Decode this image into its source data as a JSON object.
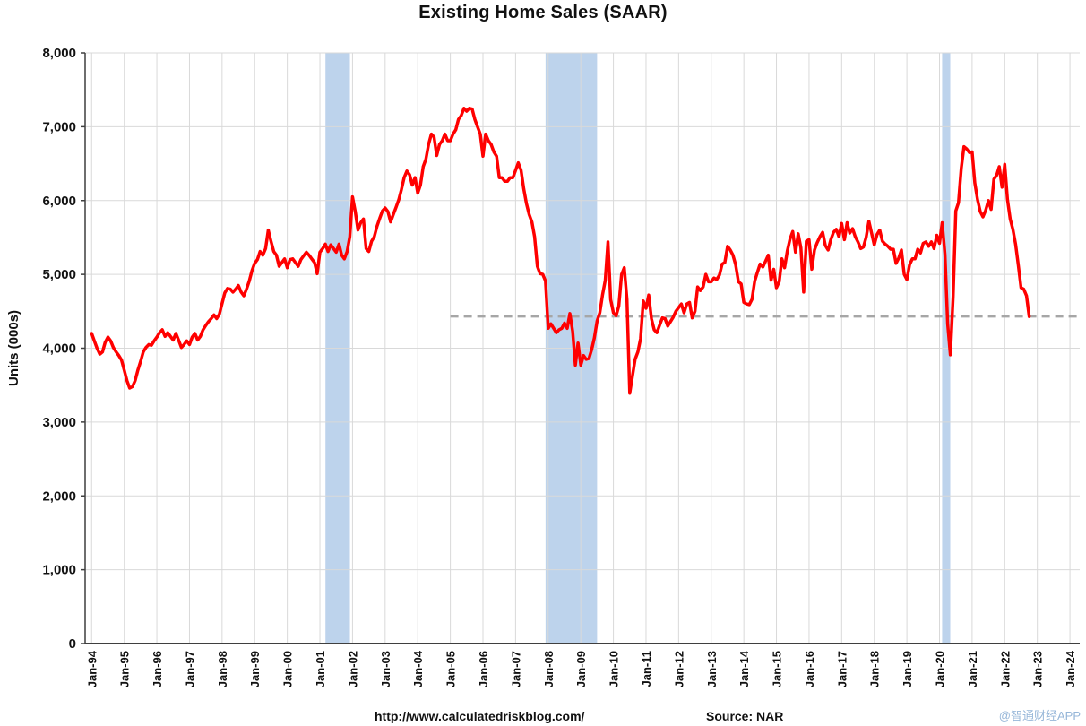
{
  "chart_data": {
    "type": "line",
    "title": "Existing Home Sales (SAAR)",
    "ylabel": "Units (000s)",
    "xlabel": "",
    "ylim": [
      0,
      8000
    ],
    "xlim_years": [
      1993.8,
      2024.3
    ],
    "grid": true,
    "legend": "none",
    "x_start": "1994-01",
    "x_frequency": "monthly",
    "x_ticks": [
      "Jan-94",
      "Jan-95",
      "Jan-96",
      "Jan-97",
      "Jan-98",
      "Jan-99",
      "Jan-00",
      "Jan-01",
      "Jan-02",
      "Jan-03",
      "Jan-04",
      "Jan-05",
      "Jan-06",
      "Jan-07",
      "Jan-08",
      "Jan-09",
      "Jan-10",
      "Jan-11",
      "Jan-12",
      "Jan-13",
      "Jan-14",
      "Jan-15",
      "Jan-16",
      "Jan-17",
      "Jan-18",
      "Jan-19",
      "Jan-20",
      "Jan-21",
      "Jan-22",
      "Jan-23",
      "Jan-24"
    ],
    "y_ticks": [
      {
        "value": 0,
        "label": "0"
      },
      {
        "value": 1000,
        "label": "1,000"
      },
      {
        "value": 2000,
        "label": "2,000"
      },
      {
        "value": 3000,
        "label": "3,000"
      },
      {
        "value": 4000,
        "label": "4,000"
      },
      {
        "value": 5000,
        "label": "5,000"
      },
      {
        "value": 6000,
        "label": "6,000"
      },
      {
        "value": 7000,
        "label": "7,000"
      },
      {
        "value": 8000,
        "label": "8,000"
      }
    ],
    "series": [
      {
        "name": "Existing Home Sales (000s, SAAR)",
        "values": [
          4200,
          4100,
          4000,
          3920,
          3950,
          4080,
          4150,
          4100,
          4010,
          3950,
          3900,
          3840,
          3700,
          3560,
          3460,
          3480,
          3560,
          3700,
          3820,
          3950,
          4010,
          4050,
          4040,
          4100,
          4150,
          4210,
          4250,
          4160,
          4210,
          4160,
          4110,
          4200,
          4110,
          4010,
          4050,
          4100,
          4050,
          4150,
          4200,
          4110,
          4160,
          4250,
          4310,
          4360,
          4400,
          4450,
          4400,
          4460,
          4610,
          4750,
          4810,
          4800,
          4760,
          4800,
          4850,
          4760,
          4710,
          4800,
          4910,
          5050,
          5150,
          5200,
          5310,
          5260,
          5350,
          5600,
          5450,
          5310,
          5260,
          5110,
          5160,
          5210,
          5090,
          5200,
          5210,
          5160,
          5110,
          5200,
          5250,
          5300,
          5260,
          5210,
          5160,
          5010,
          5300,
          5350,
          5410,
          5310,
          5400,
          5350,
          5300,
          5410,
          5260,
          5210,
          5310,
          5510,
          6050,
          5850,
          5600,
          5700,
          5750,
          5350,
          5310,
          5450,
          5510,
          5650,
          5760,
          5860,
          5900,
          5850,
          5710,
          5810,
          5910,
          6010,
          6150,
          6310,
          6400,
          6350,
          6210,
          6310,
          6100,
          6210,
          6460,
          6560,
          6760,
          6900,
          6860,
          6610,
          6760,
          6810,
          6900,
          6810,
          6810,
          6900,
          6960,
          7100,
          7150,
          7250,
          7210,
          7250,
          7240,
          7100,
          7000,
          6900,
          6600,
          6900,
          6810,
          6760,
          6660,
          6600,
          6310,
          6310,
          6260,
          6260,
          6310,
          6310,
          6410,
          6510,
          6410,
          6160,
          5960,
          5810,
          5710,
          5510,
          5110,
          5010,
          5000,
          4910,
          4270,
          4330,
          4270,
          4210,
          4250,
          4270,
          4340,
          4270,
          4470,
          4230,
          3770,
          4070,
          3770,
          3900,
          3850,
          3860,
          3980,
          4140,
          4370,
          4480,
          4720,
          4920,
          5440,
          4660,
          4480,
          4440,
          4570,
          5000,
          5090,
          4660,
          3390,
          3620,
          3850,
          3950,
          4130,
          4640,
          4540,
          4720,
          4400,
          4250,
          4210,
          4310,
          4410,
          4400,
          4300,
          4360,
          4420,
          4500,
          4550,
          4600,
          4480,
          4600,
          4620,
          4410,
          4500,
          4830,
          4780,
          4830,
          5000,
          4900,
          4900,
          4950,
          4930,
          4990,
          5140,
          5160,
          5380,
          5330,
          5260,
          5130,
          4900,
          4870,
          4620,
          4600,
          4590,
          4660,
          4910,
          5030,
          5140,
          5100,
          5180,
          5260,
          4920,
          5070,
          4820,
          4900,
          5210,
          5090,
          5320,
          5480,
          5580,
          5300,
          5550,
          5360,
          4760,
          5450,
          5470,
          5070,
          5330,
          5430,
          5510,
          5570,
          5390,
          5330,
          5470,
          5570,
          5610,
          5510,
          5690,
          5470,
          5700,
          5560,
          5620,
          5510,
          5440,
          5350,
          5370,
          5500,
          5720,
          5560,
          5400,
          5540,
          5600,
          5450,
          5410,
          5380,
          5340,
          5340,
          5150,
          5220,
          5330,
          5000,
          4930,
          5130,
          5210,
          5210,
          5340,
          5290,
          5420,
          5440,
          5380,
          5440,
          5350,
          5530,
          5420,
          5700,
          5270,
          4330,
          3910,
          4700,
          5860,
          5970,
          6440,
          6730,
          6700,
          6650,
          6660,
          6240,
          6010,
          5850,
          5780,
          5870,
          6000,
          5880,
          6290,
          6340,
          6460,
          6180,
          6490,
          6020,
          5750,
          5610,
          5410,
          5120,
          4820,
          4800,
          4710,
          4430
        ]
      }
    ],
    "recession_bands": [
      {
        "from_year": 2001.17,
        "to_year": 2001.92
      },
      {
        "from_year": 2007.92,
        "to_year": 2009.5
      },
      {
        "from_year": 2020.08,
        "to_year": 2020.33
      }
    ],
    "reference_line": {
      "value": 4430,
      "style": "dashed",
      "from_year": 2005.0,
      "to_year": 2024.3
    },
    "colors": {
      "line": "#ff0000",
      "recession_band": "#bdd3ec",
      "reference": "#a6a6a6",
      "grid": "#d9d9d9",
      "axis": "#3f3f3f"
    }
  },
  "footer": {
    "url": "http://www.calculatedriskblog.com/",
    "source": "Source: NAR",
    "watermark": "@智通财经APP"
  }
}
